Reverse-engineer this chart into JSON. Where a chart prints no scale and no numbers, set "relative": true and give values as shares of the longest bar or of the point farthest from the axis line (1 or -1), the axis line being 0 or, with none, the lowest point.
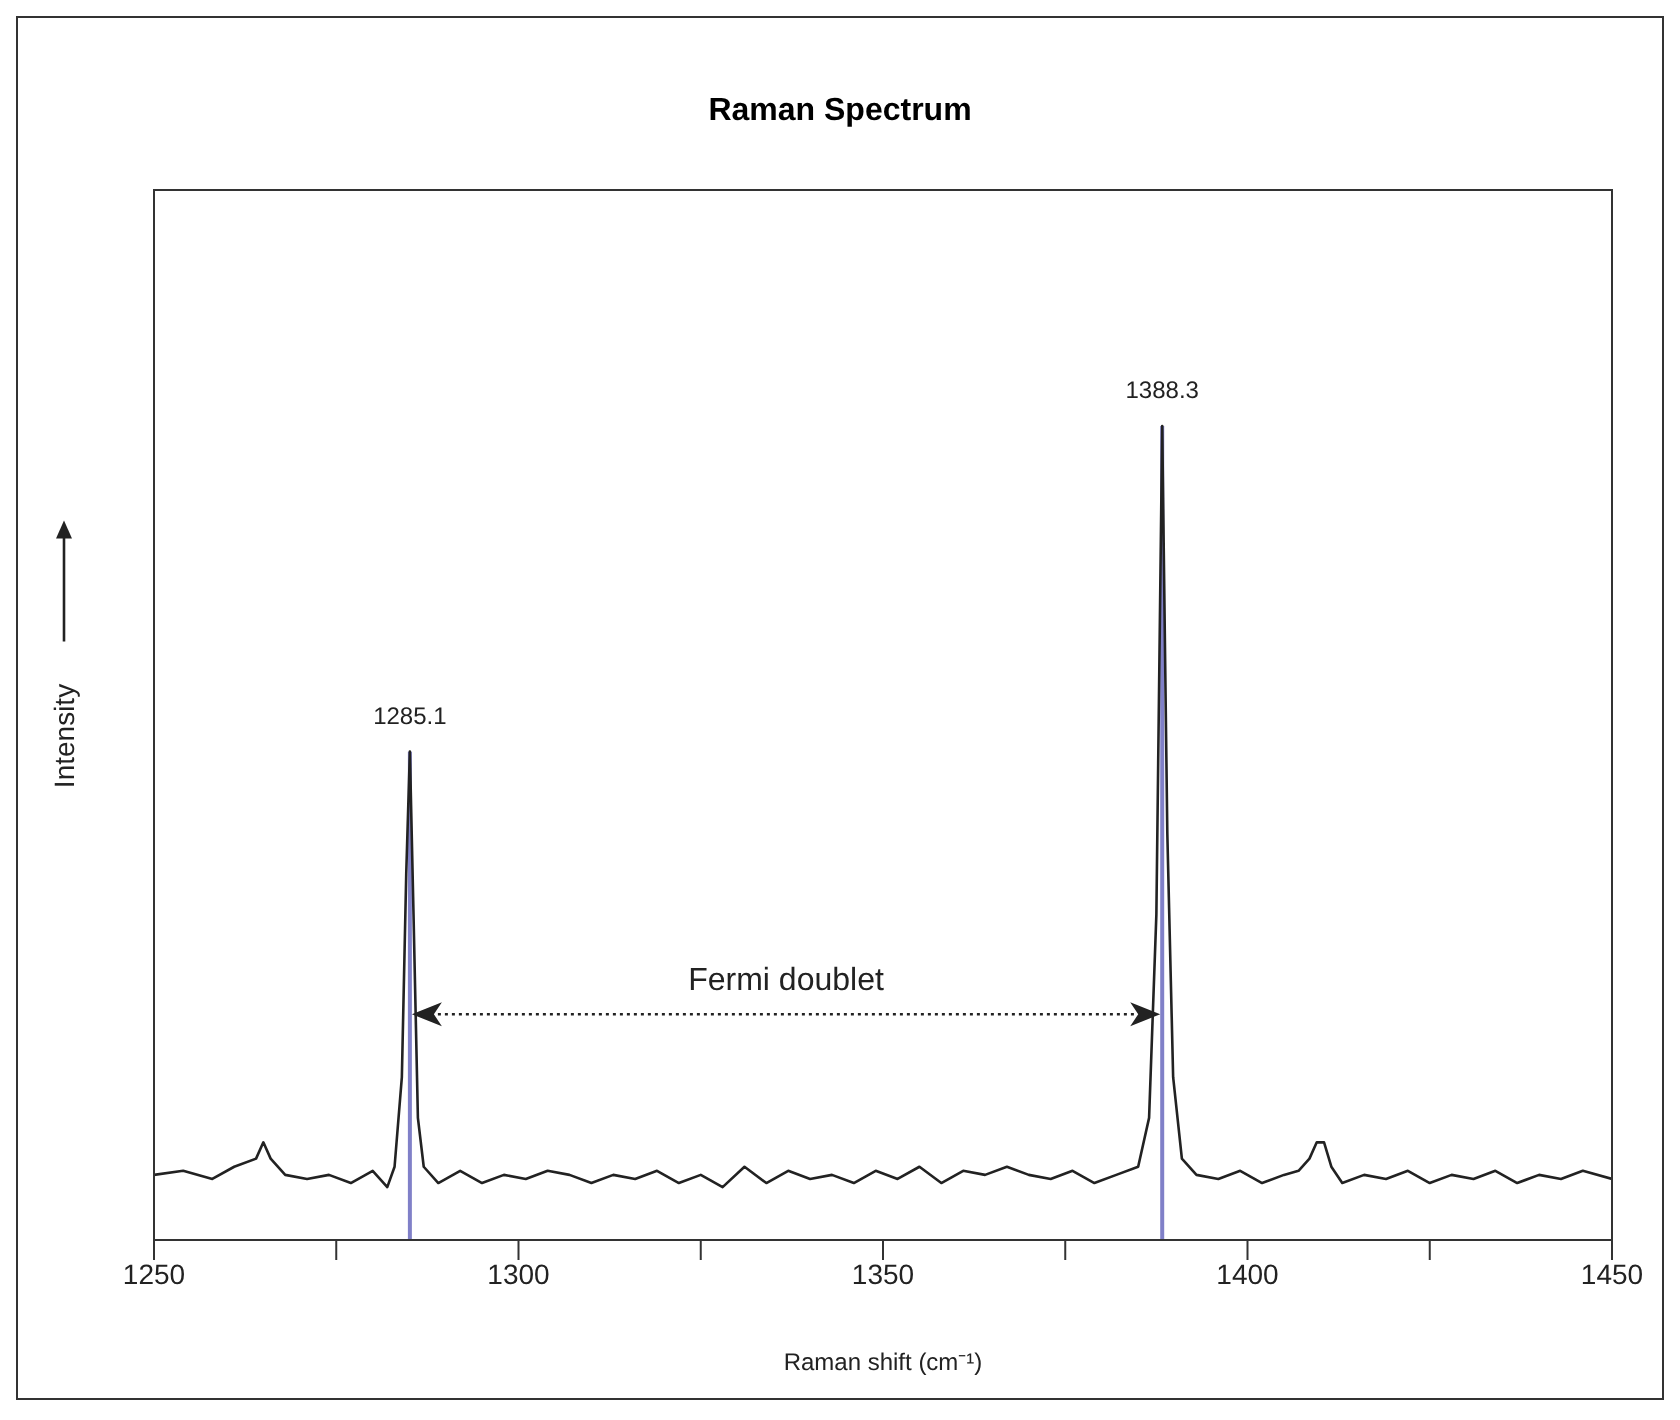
{
  "chart_data": {
    "type": "line",
    "title": "Raman Spectrum",
    "xlabel": "Raman shift (cm⁻¹)",
    "ylabel": "Intensity",
    "relative": true,
    "marker": "none",
    "line_style": "solid",
    "xlim": [
      1250,
      1450
    ],
    "xticks": [
      1250,
      {
        "value": 1275,
        "label": null
      },
      1300,
      {
        "value": 1325,
        "label": null
      },
      1350,
      {
        "value": 1375,
        "label": null
      },
      1400,
      {
        "value": 1425,
        "label": null
      },
      1450
    ],
    "series": [
      {
        "color": "#222222",
        "x": [
          1250,
          1254,
          1258,
          1261,
          1264,
          1265,
          1266,
          1268,
          1271,
          1274,
          1277,
          1280,
          1282,
          1283,
          1284,
          1284.6,
          1285.1,
          1285.6,
          1286.2,
          1287,
          1289,
          1292,
          1295,
          1298,
          1301,
          1304,
          1307,
          1310,
          1313,
          1316,
          1319,
          1322,
          1325,
          1328,
          1331,
          1334,
          1337,
          1340,
          1343,
          1346,
          1349,
          1352,
          1355,
          1358,
          1361,
          1364,
          1367,
          1370,
          1373,
          1376,
          1379,
          1382,
          1385,
          1386.5,
          1387.5,
          1388.3,
          1389,
          1389.8,
          1391,
          1393,
          1396,
          1399,
          1402,
          1405,
          1407,
          1408.5,
          1409.5,
          1410.5,
          1411.5,
          1413,
          1416,
          1419,
          1422,
          1425,
          1428,
          1431,
          1434,
          1437,
          1440,
          1443,
          1446,
          1450
        ],
        "values": [
          0.08,
          0.085,
          0.075,
          0.09,
          0.1,
          0.12,
          0.1,
          0.08,
          0.075,
          0.08,
          0.07,
          0.085,
          0.065,
          0.09,
          0.2,
          0.45,
          0.6,
          0.4,
          0.15,
          0.09,
          0.07,
          0.085,
          0.07,
          0.08,
          0.075,
          0.085,
          0.08,
          0.07,
          0.08,
          0.075,
          0.085,
          0.07,
          0.08,
          0.065,
          0.09,
          0.07,
          0.085,
          0.075,
          0.08,
          0.07,
          0.085,
          0.075,
          0.09,
          0.07,
          0.085,
          0.08,
          0.09,
          0.08,
          0.075,
          0.085,
          0.07,
          0.08,
          0.09,
          0.15,
          0.4,
          1,
          0.5,
          0.2,
          0.1,
          0.08,
          0.075,
          0.085,
          0.07,
          0.08,
          0.085,
          0.1,
          0.12,
          0.12,
          0.09,
          0.07,
          0.08,
          0.075,
          0.085,
          0.07,
          0.08,
          0.075,
          0.085,
          0.07,
          0.08,
          0.075,
          0.085,
          0.075
        ]
      }
    ],
    "ref_lines": [
      {
        "axis": "x",
        "value": 1285.1,
        "color": "#8080c8"
      },
      {
        "axis": "x",
        "value": 1388.3,
        "color": "#8080c8"
      }
    ],
    "annotations": [
      {
        "text": "1285.1",
        "x": 1285.1,
        "y": 0.6
      },
      {
        "text": "1388.3",
        "x": 1388.3,
        "y": 1
      },
      "Fermi doublet"
    ]
  }
}
